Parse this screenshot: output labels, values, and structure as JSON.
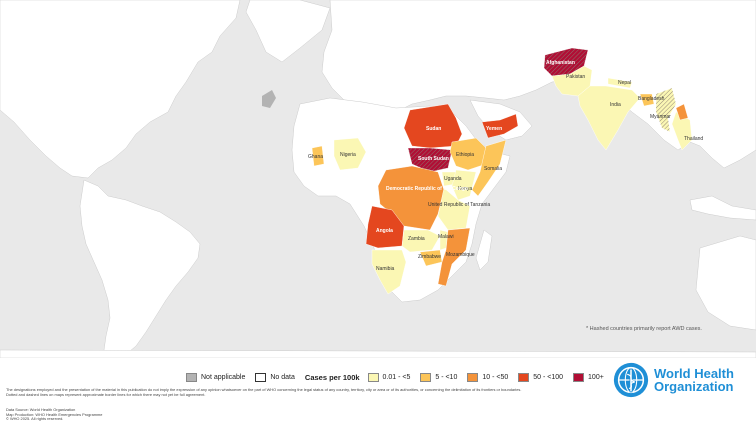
{
  "map": {
    "country_labels": [
      "Afghanistan",
      "Pakistan",
      "Nepal",
      "India",
      "Bangladesh",
      "Myanmar",
      "Thailand",
      "Sudan",
      "Yemen",
      "South Sudan",
      "Ethiopia",
      "Somalia",
      "Nigeria",
      "Ghana",
      "Uganda",
      "Kenya",
      "Democratic Republic of the Congo",
      "United Republic of Tanzania",
      "Angola",
      "Zambia",
      "Malawi",
      "Zimbabwe",
      "Namibia",
      "Mozambique"
    ],
    "hatch_note": "* Hashed countries primarily report AWD cases."
  },
  "legend": {
    "not_applicable": "Not applicable",
    "no_data": "No data",
    "title": "Cases per 100k",
    "bins": [
      "0.01 - <5",
      "5 - <10",
      "10 - <50",
      "50 - <100",
      "100+"
    ],
    "colors": {
      "not_applicable": "#b3b3b3",
      "no_data": "#ffffff",
      "bin_1": "#fbf7b4",
      "bin_2": "#fcc559",
      "bin_3": "#f4933a",
      "bin_4": "#e4471f",
      "bin_5": "#b10e35"
    }
  },
  "disclaimer": "The designations employed and the presentation of the material in this publication do not imply the expression of any opinion whatsoever on the part of WHO concerning the legal status of any country, territory, city or area or of its authorities, or concerning the delimitation of its frontiers or boundaries. Dotted and dashed lines on maps represent approximate border lines for which there may not yet be full agreement.",
  "source": {
    "data_source": "Data Source: World Health Organization",
    "map_production": "Map Production: WHO Health Emergencies Programme",
    "copyright": "© WHO 2025. All rights reserved."
  },
  "who": {
    "line1": "World Health",
    "line2": "Organization"
  }
}
